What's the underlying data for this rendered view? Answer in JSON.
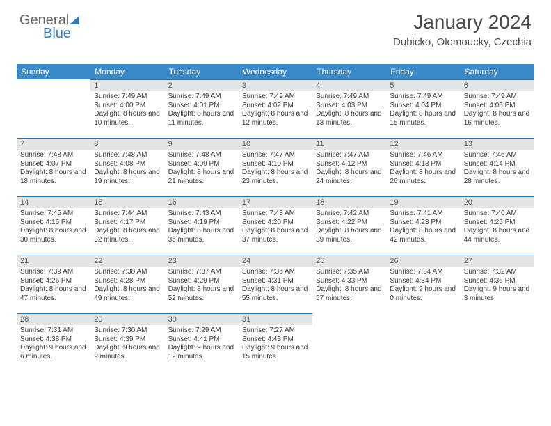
{
  "logo": {
    "text1": "General",
    "text2": "Blue"
  },
  "header": {
    "title": "January 2024",
    "subtitle": "Dubicko, Olomoucky, Czechia"
  },
  "colors": {
    "header_bg": "#3a89c9",
    "header_text": "#ffffff",
    "daynum_bg": "#e5e5e5",
    "row_divider": "#2f6fa8",
    "logo_accent": "#2f78bd",
    "text": "#3a3a3a"
  },
  "typography": {
    "title_fontsize": 28,
    "subtitle_fontsize": 15,
    "dayheader_fontsize": 12,
    "daynum_fontsize": 11,
    "info_fontsize": 10
  },
  "calendar": {
    "type": "table",
    "days_of_week": [
      "Sunday",
      "Monday",
      "Tuesday",
      "Wednesday",
      "Thursday",
      "Friday",
      "Saturday"
    ],
    "first_weekday_index": 1,
    "days": [
      {
        "n": 1,
        "sunrise": "7:49 AM",
        "sunset": "4:00 PM",
        "daylight": "8 hours and 10 minutes."
      },
      {
        "n": 2,
        "sunrise": "7:49 AM",
        "sunset": "4:01 PM",
        "daylight": "8 hours and 11 minutes."
      },
      {
        "n": 3,
        "sunrise": "7:49 AM",
        "sunset": "4:02 PM",
        "daylight": "8 hours and 12 minutes."
      },
      {
        "n": 4,
        "sunrise": "7:49 AM",
        "sunset": "4:03 PM",
        "daylight": "8 hours and 13 minutes."
      },
      {
        "n": 5,
        "sunrise": "7:49 AM",
        "sunset": "4:04 PM",
        "daylight": "8 hours and 15 minutes."
      },
      {
        "n": 6,
        "sunrise": "7:49 AM",
        "sunset": "4:05 PM",
        "daylight": "8 hours and 16 minutes."
      },
      {
        "n": 7,
        "sunrise": "7:48 AM",
        "sunset": "4:07 PM",
        "daylight": "8 hours and 18 minutes."
      },
      {
        "n": 8,
        "sunrise": "7:48 AM",
        "sunset": "4:08 PM",
        "daylight": "8 hours and 19 minutes."
      },
      {
        "n": 9,
        "sunrise": "7:48 AM",
        "sunset": "4:09 PM",
        "daylight": "8 hours and 21 minutes."
      },
      {
        "n": 10,
        "sunrise": "7:47 AM",
        "sunset": "4:10 PM",
        "daylight": "8 hours and 23 minutes."
      },
      {
        "n": 11,
        "sunrise": "7:47 AM",
        "sunset": "4:12 PM",
        "daylight": "8 hours and 24 minutes."
      },
      {
        "n": 12,
        "sunrise": "7:46 AM",
        "sunset": "4:13 PM",
        "daylight": "8 hours and 26 minutes."
      },
      {
        "n": 13,
        "sunrise": "7:46 AM",
        "sunset": "4:14 PM",
        "daylight": "8 hours and 28 minutes."
      },
      {
        "n": 14,
        "sunrise": "7:45 AM",
        "sunset": "4:16 PM",
        "daylight": "8 hours and 30 minutes."
      },
      {
        "n": 15,
        "sunrise": "7:44 AM",
        "sunset": "4:17 PM",
        "daylight": "8 hours and 32 minutes."
      },
      {
        "n": 16,
        "sunrise": "7:43 AM",
        "sunset": "4:19 PM",
        "daylight": "8 hours and 35 minutes."
      },
      {
        "n": 17,
        "sunrise": "7:43 AM",
        "sunset": "4:20 PM",
        "daylight": "8 hours and 37 minutes."
      },
      {
        "n": 18,
        "sunrise": "7:42 AM",
        "sunset": "4:22 PM",
        "daylight": "8 hours and 39 minutes."
      },
      {
        "n": 19,
        "sunrise": "7:41 AM",
        "sunset": "4:23 PM",
        "daylight": "8 hours and 42 minutes."
      },
      {
        "n": 20,
        "sunrise": "7:40 AM",
        "sunset": "4:25 PM",
        "daylight": "8 hours and 44 minutes."
      },
      {
        "n": 21,
        "sunrise": "7:39 AM",
        "sunset": "4:26 PM",
        "daylight": "8 hours and 47 minutes."
      },
      {
        "n": 22,
        "sunrise": "7:38 AM",
        "sunset": "4:28 PM",
        "daylight": "8 hours and 49 minutes."
      },
      {
        "n": 23,
        "sunrise": "7:37 AM",
        "sunset": "4:29 PM",
        "daylight": "8 hours and 52 minutes."
      },
      {
        "n": 24,
        "sunrise": "7:36 AM",
        "sunset": "4:31 PM",
        "daylight": "8 hours and 55 minutes."
      },
      {
        "n": 25,
        "sunrise": "7:35 AM",
        "sunset": "4:33 PM",
        "daylight": "8 hours and 57 minutes."
      },
      {
        "n": 26,
        "sunrise": "7:34 AM",
        "sunset": "4:34 PM",
        "daylight": "9 hours and 0 minutes."
      },
      {
        "n": 27,
        "sunrise": "7:32 AM",
        "sunset": "4:36 PM",
        "daylight": "9 hours and 3 minutes."
      },
      {
        "n": 28,
        "sunrise": "7:31 AM",
        "sunset": "4:38 PM",
        "daylight": "9 hours and 6 minutes."
      },
      {
        "n": 29,
        "sunrise": "7:30 AM",
        "sunset": "4:39 PM",
        "daylight": "9 hours and 9 minutes."
      },
      {
        "n": 30,
        "sunrise": "7:29 AM",
        "sunset": "4:41 PM",
        "daylight": "9 hours and 12 minutes."
      },
      {
        "n": 31,
        "sunrise": "7:27 AM",
        "sunset": "4:43 PM",
        "daylight": "9 hours and 15 minutes."
      }
    ],
    "labels": {
      "sunrise_prefix": "Sunrise: ",
      "sunset_prefix": "Sunset: ",
      "daylight_prefix": "Daylight: "
    }
  }
}
